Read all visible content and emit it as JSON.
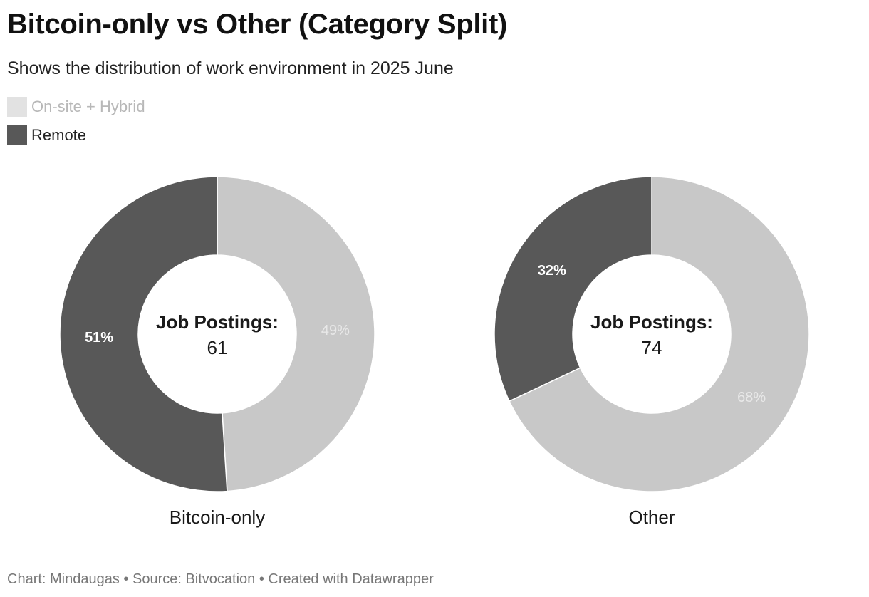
{
  "header": {
    "title": "Bitcoin-only vs Other (Category Split)",
    "subtitle": "Shows the distribution of work environment in 2025 June"
  },
  "legend": [
    {
      "label": "On-site + Hybrid",
      "color": "#e2e2e2",
      "text_color": "#b8b8b8"
    },
    {
      "label": "Remote",
      "color": "#585858",
      "text_color": "#222222"
    }
  ],
  "chart_data": {
    "type": "pie",
    "charts": [
      {
        "name": "Bitcoin-only",
        "center_label": "Job Postings:",
        "center_value": "61",
        "slices": [
          {
            "name": "On-site + Hybrid",
            "value": 49,
            "label": "49%",
            "color": "#c8c8c8",
            "label_color": "#e8e8e8",
            "label_weight": "normal"
          },
          {
            "name": "Remote",
            "value": 51,
            "label": "51%",
            "color": "#585858",
            "label_color": "#ffffff",
            "label_weight": "bold"
          }
        ]
      },
      {
        "name": "Other",
        "center_label": "Job Postings:",
        "center_value": "74",
        "slices": [
          {
            "name": "On-site + Hybrid",
            "value": 68,
            "label": "68%",
            "color": "#c8c8c8",
            "label_color": "#e8e8e8",
            "label_weight": "normal"
          },
          {
            "name": "Remote",
            "value": 32,
            "label": "32%",
            "color": "#585858",
            "label_color": "#ffffff",
            "label_weight": "bold"
          }
        ]
      }
    ]
  },
  "footer": {
    "credit": "Chart: Mindaugas • Source: Bitvocation • Created with Datawrapper"
  }
}
